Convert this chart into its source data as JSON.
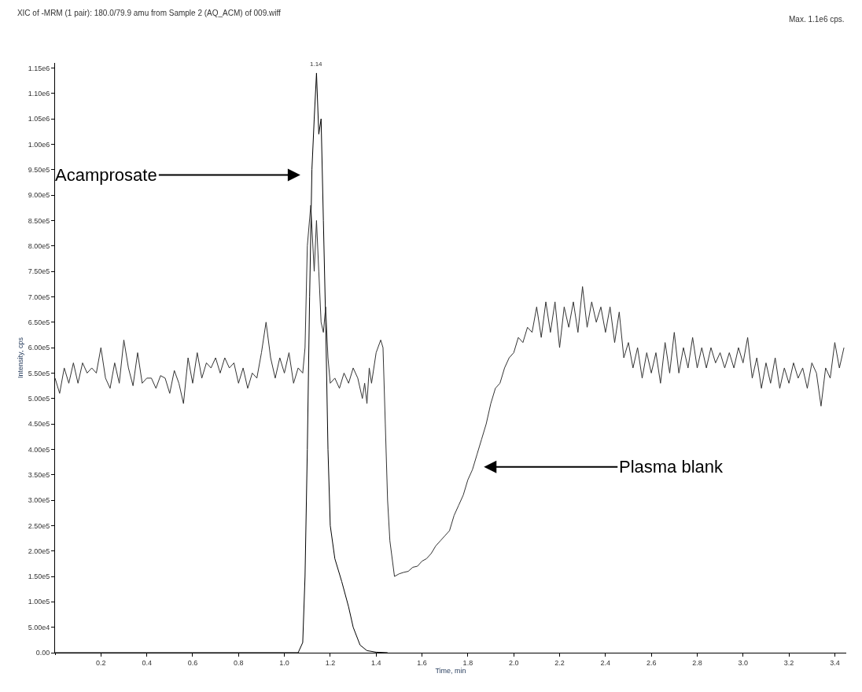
{
  "chart_data": {
    "type": "line",
    "title": "XIC of -MRM (1 pair): 180.0/79.9 amu from Sample 2 (AQ_ACM) of 009.wiff",
    "xlabel": "Time, min",
    "ylabel": "Intensity, cps",
    "annotations": [
      "Max. 1.1e6 cps.",
      {
        "text": "1.14",
        "x": 1.14,
        "y": 1140000.0
      },
      "Acamprosate",
      "Plasma blank"
    ],
    "xlim": [
      0,
      3.45
    ],
    "ylim": [
      0,
      1160000.0
    ],
    "xticks": [
      0.2,
      0.4,
      0.6,
      0.8,
      {
        "value": 1,
        "label": "1.0"
      },
      1.2,
      1.4,
      1.6,
      1.8,
      {
        "value": 2,
        "label": "2.0"
      },
      2.2,
      2.4,
      2.6,
      2.8,
      {
        "value": 3,
        "label": "3.0"
      },
      3.2,
      3.4
    ],
    "yticks": [
      {
        "value": 0,
        "label": "0.00"
      },
      {
        "value": 50000.0,
        "label": "5.00e4"
      },
      {
        "value": 100000.0,
        "label": "1.00e5"
      },
      {
        "value": 150000.0,
        "label": "1.50e5"
      },
      {
        "value": 200000.0,
        "label": "2.00e5"
      },
      {
        "value": 250000.0,
        "label": "2.50e5"
      },
      {
        "value": 300000.0,
        "label": "3.00e5"
      },
      {
        "value": 350000.0,
        "label": "3.50e5"
      },
      {
        "value": 400000.0,
        "label": "4.00e5"
      },
      {
        "value": 450000.0,
        "label": "4.50e5"
      },
      {
        "value": 500000.0,
        "label": "5.00e5"
      },
      {
        "value": 550000.0,
        "label": "5.50e5"
      },
      {
        "value": 600000.0,
        "label": "6.00e5"
      },
      {
        "value": 650000.0,
        "label": "6.50e5"
      },
      {
        "value": 700000.0,
        "label": "7.00e5"
      },
      {
        "value": 750000.0,
        "label": "7.50e5"
      },
      {
        "value": 800000.0,
        "label": "8.00e5"
      },
      {
        "value": 850000.0,
        "label": "8.50e5"
      },
      {
        "value": 900000.0,
        "label": "9.00e5"
      },
      {
        "value": 950000.0,
        "label": "9.50e5"
      },
      {
        "value": 1000000.0,
        "label": "1.00e6"
      },
      {
        "value": 1050000.0,
        "label": "1.05e6"
      },
      {
        "value": 1100000.0,
        "label": "1.10e6"
      },
      {
        "value": 1150000.0,
        "label": "1.15e6"
      }
    ],
    "marker": "none",
    "line_style": "solid",
    "series": [
      {
        "color": "#000000",
        "x": [
          0,
          1.06,
          1.08,
          1.09,
          1.1,
          1.11,
          1.12,
          1.13,
          1.14,
          1.15,
          1.16,
          1.17,
          1.18,
          1.19,
          1.2,
          1.22,
          1.25,
          1.28,
          1.3,
          1.33,
          1.36,
          1.4,
          1.45
        ],
        "values": [
          0,
          0,
          20000.0,
          150000.0,
          400000.0,
          700000.0,
          950000.0,
          1050000.0,
          1140000.0,
          1020000.0,
          1050000.0,
          850000.0,
          650000.0,
          400000.0,
          250000.0,
          185000.0,
          140000.0,
          90000.0,
          50000.0,
          15000.0,
          4000.0,
          1000.0,
          0
        ]
      },
      {
        "color": "#333333",
        "x": [
          0.0,
          0.02,
          0.04,
          0.06,
          0.08,
          0.1,
          0.12,
          0.14,
          0.16,
          0.18,
          0.2,
          0.22,
          0.24,
          0.26,
          0.28,
          0.3,
          0.32,
          0.34,
          0.36,
          0.38,
          0.4,
          0.42,
          0.44,
          0.46,
          0.48,
          0.5,
          0.52,
          0.54,
          0.56,
          0.58,
          0.6,
          0.62,
          0.64,
          0.66,
          0.68,
          0.7,
          0.72,
          0.74,
          0.76,
          0.78,
          0.8,
          0.82,
          0.84,
          0.86,
          0.88,
          0.9,
          0.92,
          0.94,
          0.96,
          0.98,
          1.0,
          1.02,
          1.04,
          1.06,
          1.08,
          1.09,
          1.1,
          1.115,
          1.13,
          1.14,
          1.15,
          1.16,
          1.17,
          1.18,
          1.19,
          1.2,
          1.22,
          1.24,
          1.26,
          1.28,
          1.3,
          1.32,
          1.34,
          1.35,
          1.36,
          1.37,
          1.38,
          1.4,
          1.42,
          1.43,
          1.44,
          1.45,
          1.46,
          1.48,
          1.5,
          1.52,
          1.54,
          1.56,
          1.58,
          1.6,
          1.62,
          1.64,
          1.66,
          1.68,
          1.7,
          1.72,
          1.74,
          1.76,
          1.78,
          1.8,
          1.82,
          1.84,
          1.86,
          1.88,
          1.9,
          1.92,
          1.94,
          1.96,
          1.98,
          2.0,
          2.02,
          2.04,
          2.06,
          2.08,
          2.1,
          2.12,
          2.14,
          2.16,
          2.18,
          2.2,
          2.22,
          2.24,
          2.26,
          2.28,
          2.3,
          2.32,
          2.34,
          2.36,
          2.38,
          2.4,
          2.42,
          2.44,
          2.46,
          2.48,
          2.5,
          2.52,
          2.54,
          2.56,
          2.58,
          2.6,
          2.62,
          2.64,
          2.66,
          2.68,
          2.7,
          2.72,
          2.74,
          2.76,
          2.78,
          2.8,
          2.82,
          2.84,
          2.86,
          2.88,
          2.9,
          2.92,
          2.94,
          2.96,
          2.98,
          3.0,
          3.02,
          3.04,
          3.06,
          3.08,
          3.1,
          3.12,
          3.14,
          3.16,
          3.18,
          3.2,
          3.22,
          3.24,
          3.26,
          3.28,
          3.3,
          3.32,
          3.34,
          3.36,
          3.38,
          3.4,
          3.42,
          3.44
        ],
        "values": [
          540000.0,
          510000.0,
          560000.0,
          530000.0,
          570000.0,
          530000.0,
          570000.0,
          550000.0,
          560000.0,
          550000.0,
          600000.0,
          540000.0,
          520000.0,
          570000.0,
          530000.0,
          615000.0,
          560000.0,
          525000.0,
          590000.0,
          530000.0,
          540000.0,
          540000.0,
          520000.0,
          545000.0,
          540000.0,
          510000.0,
          555000.0,
          530000.0,
          490000.0,
          580000.0,
          530000.0,
          590000.0,
          540000.0,
          570000.0,
          560000.0,
          580000.0,
          550000.0,
          580000.0,
          560000.0,
          570000.0,
          530000.0,
          560000.0,
          520000.0,
          550000.0,
          540000.0,
          590000.0,
          650000.0,
          580000.0,
          540000.0,
          580000.0,
          550000.0,
          590000.0,
          530000.0,
          560000.0,
          550000.0,
          600000.0,
          800000.0,
          880000.0,
          750000.0,
          850000.0,
          750000.0,
          650000.0,
          630000.0,
          680000.0,
          580000.0,
          530000.0,
          540000.0,
          520000.0,
          550000.0,
          530000.0,
          560000.0,
          540000.0,
          500000.0,
          530000.0,
          490000.0,
          560000.0,
          530000.0,
          590000.0,
          615000.0,
          600000.0,
          450000.0,
          300000.0,
          220000.0,
          150000.0,
          155000.0,
          158000.0,
          160000.0,
          168000.0,
          170000.0,
          180000.0,
          185000.0,
          195000.0,
          210000.0,
          220000.0,
          230000.0,
          240000.0,
          270000.0,
          290000.0,
          310000.0,
          340000.0,
          360000.0,
          390000.0,
          420000.0,
          450000.0,
          490000.0,
          520000.0,
          530000.0,
          560000.0,
          580000.0,
          590000.0,
          620000.0,
          610000.0,
          640000.0,
          630000.0,
          680000.0,
          620000.0,
          690000.0,
          630000.0,
          690000.0,
          600000.0,
          680000.0,
          640000.0,
          690000.0,
          630000.0,
          720000.0,
          640000.0,
          690000.0,
          650000.0,
          680000.0,
          630000.0,
          680000.0,
          610000.0,
          670000.0,
          580000.0,
          610000.0,
          560000.0,
          600000.0,
          540000.0,
          590000.0,
          550000.0,
          590000.0,
          530000.0,
          610000.0,
          550000.0,
          630000.0,
          550000.0,
          600000.0,
          560000.0,
          620000.0,
          560000.0,
          600000.0,
          560000.0,
          600000.0,
          570000.0,
          590000.0,
          560000.0,
          590000.0,
          560000.0,
          600000.0,
          570000.0,
          620000.0,
          540000.0,
          580000.0,
          520000.0,
          570000.0,
          530000.0,
          580000.0,
          520000.0,
          560000.0,
          530000.0,
          570000.0,
          540000.0,
          560000.0,
          520000.0,
          570000.0,
          550000.0,
          485000.0,
          560000.0,
          540000.0,
          610000.0,
          560000.0,
          600000.0
        ]
      }
    ]
  }
}
